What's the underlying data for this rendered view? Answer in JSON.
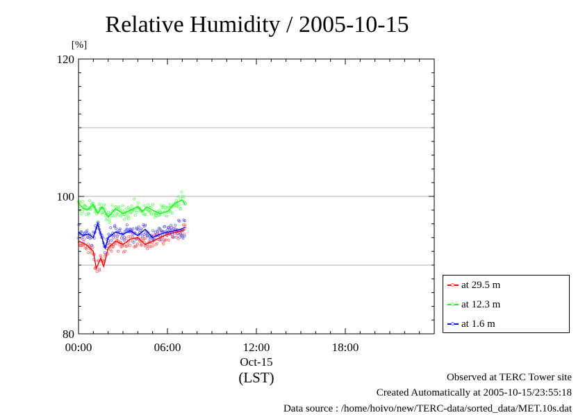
{
  "chart_data": {
    "type": "scatter",
    "title": "Relative Humidity / 2005-10-15",
    "y_unit": "[%]",
    "ylim": [
      80,
      120
    ],
    "y_ticks": [
      80,
      100,
      120
    ],
    "y_gridlines": [
      90,
      100,
      110
    ],
    "xlim_hours": [
      0,
      24
    ],
    "x_ticks": [
      {
        "hour": 0,
        "label": "00:00"
      },
      {
        "hour": 6,
        "label": "06:00"
      },
      {
        "hour": 12,
        "label": "12:00"
      },
      {
        "hour": 18,
        "label": "18:00"
      }
    ],
    "x_date_label": "Oct-15",
    "x_zone_label": "(LST)",
    "legend_position": "right",
    "series": [
      {
        "name": "at 29.5 m",
        "color": "#ff0000",
        "scatter_color": "#ff6666",
        "x_hours": [
          0.0,
          0.5,
          1.0,
          1.2,
          1.5,
          1.7,
          2.0,
          2.5,
          3.0,
          3.5,
          4.0,
          4.5,
          5.0,
          5.5,
          6.0,
          6.5,
          7.0,
          7.2
        ],
        "values": [
          93.5,
          93.0,
          92.0,
          89.5,
          91.0,
          89.8,
          92.5,
          93.5,
          93.0,
          93.8,
          94.0,
          93.0,
          93.5,
          94.0,
          94.5,
          94.8,
          95.0,
          95.2
        ]
      },
      {
        "name": "at 12.3 m",
        "color": "#00ff00",
        "scatter_color": "#66ff66",
        "x_hours": [
          0.0,
          0.3,
          0.6,
          1.0,
          1.3,
          1.6,
          2.0,
          2.5,
          3.0,
          3.5,
          4.0,
          4.3,
          4.6,
          5.0,
          5.5,
          6.0,
          6.5,
          7.0,
          7.2
        ],
        "values": [
          99.0,
          98.3,
          98.0,
          98.8,
          97.5,
          98.5,
          97.0,
          98.2,
          97.5,
          98.0,
          98.5,
          97.8,
          98.5,
          98.0,
          97.5,
          97.8,
          99.0,
          99.5,
          98.8
        ]
      },
      {
        "name": "at 1.6 m",
        "color": "#0000ff",
        "scatter_color": "#6666ff",
        "x_hours": [
          0.0,
          0.3,
          0.7,
          1.0,
          1.3,
          1.5,
          1.8,
          2.0,
          2.5,
          3.0,
          3.5,
          4.0,
          4.5,
          5.0,
          5.5,
          6.0,
          6.5,
          7.0,
          7.2
        ],
        "values": [
          94.8,
          94.3,
          94.5,
          94.0,
          96.0,
          94.5,
          92.5,
          94.0,
          94.8,
          94.5,
          95.0,
          94.3,
          95.2,
          94.0,
          94.5,
          94.8,
          95.0,
          95.3,
          95.5
        ]
      }
    ]
  },
  "footer": {
    "site": "Observed at TERC Tower site",
    "created": "Created Automatically at 2005-10-15/23:55:18",
    "source": "Data source : /home/hoivo/new/TERC-data/sorted_data/MET.10s.dat"
  }
}
